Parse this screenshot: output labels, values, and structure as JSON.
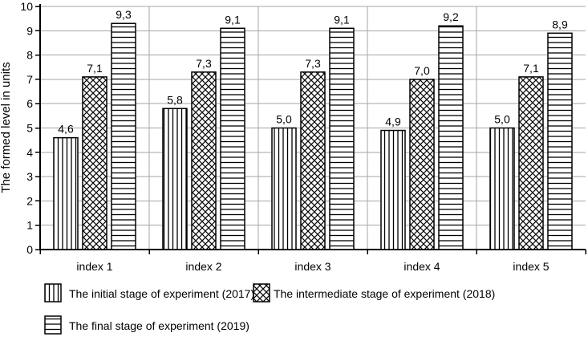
{
  "chart_data": {
    "type": "bar",
    "title": "",
    "xlabel": "",
    "ylabel": "The formed level in units",
    "ylim": [
      0,
      10
    ],
    "ytick_step": 1,
    "ytick_labels": [
      "0",
      "1",
      "2",
      "3",
      "4",
      "5",
      "6",
      "7",
      "8",
      "9",
      "10"
    ],
    "grid": true,
    "legend_position": "bottom",
    "categories": [
      "index 1",
      "index 2",
      "index 3",
      "index 4",
      "index 5"
    ],
    "series": [
      {
        "name": "The initial stage of experiment (2017)",
        "pattern": "vertical-lines",
        "values": [
          4.6,
          5.8,
          5.0,
          4.9,
          5.0
        ],
        "value_labels": [
          "4,6",
          "5,8",
          "5,0",
          "4,9",
          "5,0"
        ]
      },
      {
        "name": "The intermediate stage of experiment (2018)",
        "pattern": "crosshatch",
        "values": [
          7.1,
          7.3,
          7.3,
          7.0,
          7.1
        ],
        "value_labels": [
          "7,1",
          "7,3",
          "7,3",
          "7,0",
          "7,1"
        ]
      },
      {
        "name": "The final stage of experiment (2019)",
        "pattern": "horizontal-lines",
        "values": [
          9.3,
          9.1,
          9.1,
          9.2,
          8.9
        ],
        "value_labels": [
          "9,3",
          "9,1",
          "9,1",
          "9,2",
          "8,9"
        ]
      }
    ],
    "colors": {
      "bar_fill": "#ffffff",
      "bar_stroke": "#000000",
      "grid": "#a6a6a6",
      "axis": "#000000",
      "text": "#000000",
      "background": "#ffffff"
    }
  }
}
